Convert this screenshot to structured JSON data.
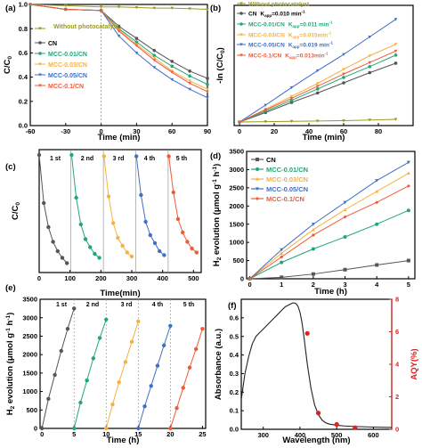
{
  "colors": {
    "black": "#000000",
    "cn": "#555555",
    "olive": "#9a9a20",
    "green": "#21a67a",
    "orange": "#f6b13f",
    "blue": "#3f6fc4",
    "red": "#ef5a37",
    "aqy": "#e02020",
    "abs": "#222222"
  },
  "chart_data": [
    {
      "panel": "a",
      "type": "line",
      "panel_label": "(a)",
      "xlabel": "Time (min)",
      "ylabel": "C/C0",
      "xlim": [
        -60,
        90
      ],
      "ylim": [
        0.0,
        1.0
      ],
      "xticks": [
        "-60",
        "-30",
        "0",
        "30",
        "60",
        "90"
      ],
      "yticks": [
        "0.0",
        "0.2",
        "0.4",
        "0.6",
        "0.8",
        "1.0"
      ],
      "legend_position": "bottom-left",
      "x": [
        -60,
        -30,
        0,
        15,
        30,
        45,
        60,
        75,
        90
      ],
      "series": [
        {
          "name": "Without photocatalyst",
          "color_key": "olive",
          "marker": "triangle-down",
          "values": [
            1.0,
            0.99,
            0.98,
            0.98,
            0.975,
            0.97,
            0.97,
            0.965,
            0.96
          ]
        },
        {
          "name": "CN",
          "color_key": "cn",
          "marker": "circle",
          "values": [
            1.0,
            0.96,
            0.95,
            0.82,
            0.72,
            0.62,
            0.53,
            0.45,
            0.39
          ]
        },
        {
          "name": "MCC-0.01/CN",
          "color_key": "green",
          "marker": "circle",
          "values": [
            1.0,
            0.96,
            0.95,
            0.8,
            0.69,
            0.58,
            0.49,
            0.41,
            0.34
          ]
        },
        {
          "name": "MCC-0.03/CN",
          "color_key": "orange",
          "marker": "triangle-down",
          "values": [
            1.0,
            0.96,
            0.95,
            0.79,
            0.67,
            0.56,
            0.45,
            0.37,
            0.3
          ]
        },
        {
          "name": "MCC-0.05/CN",
          "color_key": "blue",
          "marker": "triangle-down",
          "values": [
            1.0,
            0.96,
            0.95,
            0.74,
            0.6,
            0.48,
            0.38,
            0.3,
            0.23
          ]
        },
        {
          "name": "MCC-0.1/CN",
          "color_key": "red",
          "marker": "triangle-down",
          "values": [
            1.0,
            0.96,
            0.95,
            0.78,
            0.66,
            0.54,
            0.44,
            0.35,
            0.28
          ]
        }
      ]
    },
    {
      "panel": "b",
      "type": "line",
      "panel_label": "(b)",
      "xlabel": "Time (min)",
      "ylabel": "-ln (C/C0)",
      "xlim": [
        0,
        100
      ],
      "ylim": [
        0,
        1.7
      ],
      "xticks": [
        "0",
        "20",
        "40",
        "60",
        "80"
      ],
      "yticks": [],
      "legend_position": "top-left",
      "x": [
        0,
        15,
        30,
        45,
        60,
        75,
        90
      ],
      "series": [
        {
          "name": "Without photocatalyst",
          "color_key": "olive",
          "marker": "triangle-down",
          "values": [
            0,
            0.005,
            0.01,
            0.015,
            0.02,
            0.03,
            0.04
          ]
        },
        {
          "name": "CN",
          "rate_label": "K",
          "rate_sub": "app",
          "rate_value": "=0.010",
          "rate_unit": " min",
          "rate_exp": "-1",
          "color_key": "cn",
          "marker": "circle",
          "values": [
            0,
            0.14,
            0.29,
            0.43,
            0.58,
            0.73,
            0.87
          ]
        },
        {
          "name": "MCC-0.01/CN",
          "rate_label": "K",
          "rate_sub": "app",
          "rate_value": "=0.011",
          "rate_unit": " min",
          "rate_exp": "-1",
          "color_key": "green",
          "marker": "circle",
          "values": [
            0,
            0.16,
            0.32,
            0.49,
            0.66,
            0.82,
            0.99
          ]
        },
        {
          "name": "MCC-0.03/CN",
          "rate_label": "K",
          "rate_sub": "app",
          "rate_value": "=0.015",
          "rate_unit": "min",
          "rate_exp": "-1",
          "color_key": "orange",
          "marker": "triangle-down",
          "values": [
            0,
            0.19,
            0.38,
            0.57,
            0.78,
            0.98,
            1.15
          ]
        },
        {
          "name": "MCC-0.05/CN",
          "rate_label": "K",
          "rate_sub": "app",
          "rate_value": "=0.019",
          "rate_unit": " min",
          "rate_exp": "-1",
          "color_key": "blue",
          "marker": "triangle-down",
          "values": [
            0,
            0.25,
            0.51,
            0.76,
            1.0,
            1.26,
            1.52
          ]
        },
        {
          "name": "MCC-0.1/CN",
          "rate_label": "K",
          "rate_sub": "app",
          "rate_value": "=0.013",
          "rate_unit": "min",
          "rate_exp": "-1",
          "color_key": "red",
          "marker": "triangle-down",
          "values": [
            0,
            0.18,
            0.35,
            0.53,
            0.71,
            0.88,
            1.05
          ]
        }
      ]
    },
    {
      "panel": "c",
      "type": "line",
      "panel_label": "(c)",
      "xlabel": "Time(min)",
      "ylabel": "C/C0",
      "xlim": [
        0,
        525
      ],
      "ylim": [
        0.1,
        1.02
      ],
      "xticks": [
        "0",
        "100",
        "200",
        "300",
        "400",
        "500"
      ],
      "yticks": [],
      "cycle_labels": [
        "1 st",
        "2 nd",
        "3 rd",
        "4 th",
        "5 th"
      ],
      "cycle_dividers": [
        103,
        208,
        313,
        418
      ],
      "cycles": [
        {
          "color_key": "cn",
          "x": [
            0,
            15,
            30,
            45,
            60,
            75,
            90
          ],
          "values": [
            0.98,
            0.62,
            0.44,
            0.33,
            0.26,
            0.21,
            0.17
          ]
        },
        {
          "color_key": "green",
          "x": [
            105,
            120,
            135,
            150,
            165,
            180,
            195
          ],
          "values": [
            0.98,
            0.66,
            0.46,
            0.35,
            0.29,
            0.24,
            0.21
          ]
        },
        {
          "color_key": "orange",
          "x": [
            210,
            225,
            240,
            255,
            270,
            285,
            300
          ],
          "values": [
            0.97,
            0.67,
            0.47,
            0.36,
            0.3,
            0.25,
            0.22
          ]
        },
        {
          "color_key": "blue",
          "x": [
            315,
            330,
            345,
            360,
            375,
            390,
            405
          ],
          "values": [
            0.97,
            0.68,
            0.48,
            0.38,
            0.32,
            0.26,
            0.23
          ]
        },
        {
          "color_key": "red",
          "x": [
            420,
            435,
            450,
            465,
            480,
            495,
            510
          ],
          "values": [
            0.97,
            0.7,
            0.5,
            0.4,
            0.33,
            0.28,
            0.25
          ]
        }
      ]
    },
    {
      "panel": "d",
      "type": "line",
      "panel_label": "(d)",
      "xlabel": "Time (h)",
      "ylabel_main": "H",
      "ylabel_sub": "2",
      "ylabel_rest": " evolution (μmol g",
      "ylabel_exp1": "-1",
      "ylabel_mid": " h",
      "ylabel_exp2": "-1",
      "ylabel_end": ")",
      "xlim": [
        -0.1,
        5.2
      ],
      "ylim": [
        0,
        3500
      ],
      "xticks": [
        "0",
        "1",
        "2",
        "3",
        "4",
        "5"
      ],
      "yticks": [
        "0",
        "500",
        "1000",
        "1500",
        "2000",
        "2500",
        "3000",
        "3500"
      ],
      "legend_position": "top-left",
      "x": [
        0,
        1,
        2,
        3,
        4,
        5
      ],
      "series": [
        {
          "name": "CN",
          "color_key": "cn",
          "marker": "square",
          "values": [
            0,
            40,
            130,
            250,
            380,
            500
          ]
        },
        {
          "name": "MCC-0.01/CN",
          "color_key": "green",
          "marker": "circle",
          "values": [
            0,
            450,
            820,
            1150,
            1500,
            1880
          ]
        },
        {
          "name": "MCC-0.03/CN",
          "color_key": "orange",
          "marker": "triangle-up",
          "values": [
            0,
            700,
            1350,
            1900,
            2400,
            2900
          ]
        },
        {
          "name": "MCC-0.05/CN",
          "color_key": "blue",
          "marker": "triangle-down",
          "values": [
            0,
            800,
            1500,
            2100,
            2700,
            3200
          ]
        },
        {
          "name": "MCC-0.1/CN",
          "color_key": "red",
          "marker": "diamond",
          "values": [
            0,
            600,
            1200,
            1700,
            2100,
            2550
          ]
        }
      ]
    },
    {
      "panel": "e",
      "type": "line",
      "panel_label": "(e)",
      "xlabel": "Time (h)",
      "ylabel_main": "H",
      "ylabel_sub": "2",
      "ylabel_rest": " evolution (μmol g",
      "ylabel_exp1": "-1",
      "ylabel_mid": " h",
      "ylabel_exp2": "-1",
      "ylabel_end": ")",
      "xlim": [
        -0.3,
        25.5
      ],
      "ylim": [
        0,
        3500
      ],
      "xticks": [
        "0",
        "5",
        "10",
        "15",
        "20",
        "25"
      ],
      "yticks": [
        "0",
        "500",
        "1000",
        "1500",
        "2000",
        "2500",
        "3000",
        "3500"
      ],
      "cycle_labels": [
        "1 st",
        "2 nd",
        "3 rd",
        "4 th",
        "5 th"
      ],
      "cycle_dividers": [
        5,
        10,
        15,
        20
      ],
      "cycles": [
        {
          "color_key": "cn",
          "x": [
            0,
            1,
            2,
            3,
            4,
            5
          ],
          "values": [
            0,
            800,
            1450,
            2100,
            2700,
            3250
          ]
        },
        {
          "color_key": "green",
          "x": [
            5,
            6,
            7,
            8,
            9,
            10
          ],
          "values": [
            0,
            700,
            1300,
            1900,
            2450,
            2950
          ]
        },
        {
          "color_key": "orange",
          "x": [
            10,
            11,
            12,
            13,
            14,
            15
          ],
          "values": [
            0,
            650,
            1250,
            1800,
            2350,
            2900
          ]
        },
        {
          "color_key": "blue",
          "x": [
            15,
            16,
            17,
            18,
            19,
            20
          ],
          "values": [
            0,
            600,
            1150,
            1700,
            2250,
            2780
          ]
        },
        {
          "color_key": "red",
          "x": [
            20,
            21,
            22,
            23,
            24,
            25
          ],
          "values": [
            0,
            550,
            1100,
            1650,
            2150,
            2700
          ]
        }
      ]
    },
    {
      "panel": "f",
      "type": "line",
      "panel_label": "(f)",
      "xlabel": "Wavelength (nm)",
      "ylabel": "Absorbance (a.u.)",
      "ylabel_right": "AQY(%)",
      "xlim": [
        240,
        650
      ],
      "ylim": [
        0,
        0.7
      ],
      "ylim_right": [
        0,
        8
      ],
      "xticks": [
        "300",
        "400",
        "500",
        "600"
      ],
      "yticks": [
        "0.0",
        "0.1",
        "0.2",
        "0.3",
        "0.4",
        "0.5",
        "0.6"
      ],
      "yticks_right": [
        "0",
        "2",
        "4",
        "6",
        "8"
      ],
      "absorbance": {
        "x": [
          240,
          250,
          260,
          270,
          280,
          290,
          300,
          310,
          320,
          330,
          340,
          350,
          360,
          370,
          380,
          385,
          390,
          395,
          400,
          405,
          410,
          415,
          420,
          430,
          440,
          450,
          460,
          470,
          480,
          500,
          520,
          550,
          600,
          650
        ],
        "values": [
          0.16,
          0.3,
          0.39,
          0.46,
          0.5,
          0.52,
          0.54,
          0.56,
          0.58,
          0.6,
          0.62,
          0.64,
          0.66,
          0.67,
          0.68,
          0.68,
          0.675,
          0.66,
          0.63,
          0.58,
          0.51,
          0.43,
          0.35,
          0.22,
          0.13,
          0.08,
          0.05,
          0.035,
          0.028,
          0.022,
          0.018,
          0.015,
          0.012,
          0.01
        ]
      },
      "aqy": {
        "x": [
          420,
          450,
          500,
          550
        ],
        "values": [
          5.9,
          1.0,
          0.3,
          0.1
        ]
      }
    }
  ]
}
